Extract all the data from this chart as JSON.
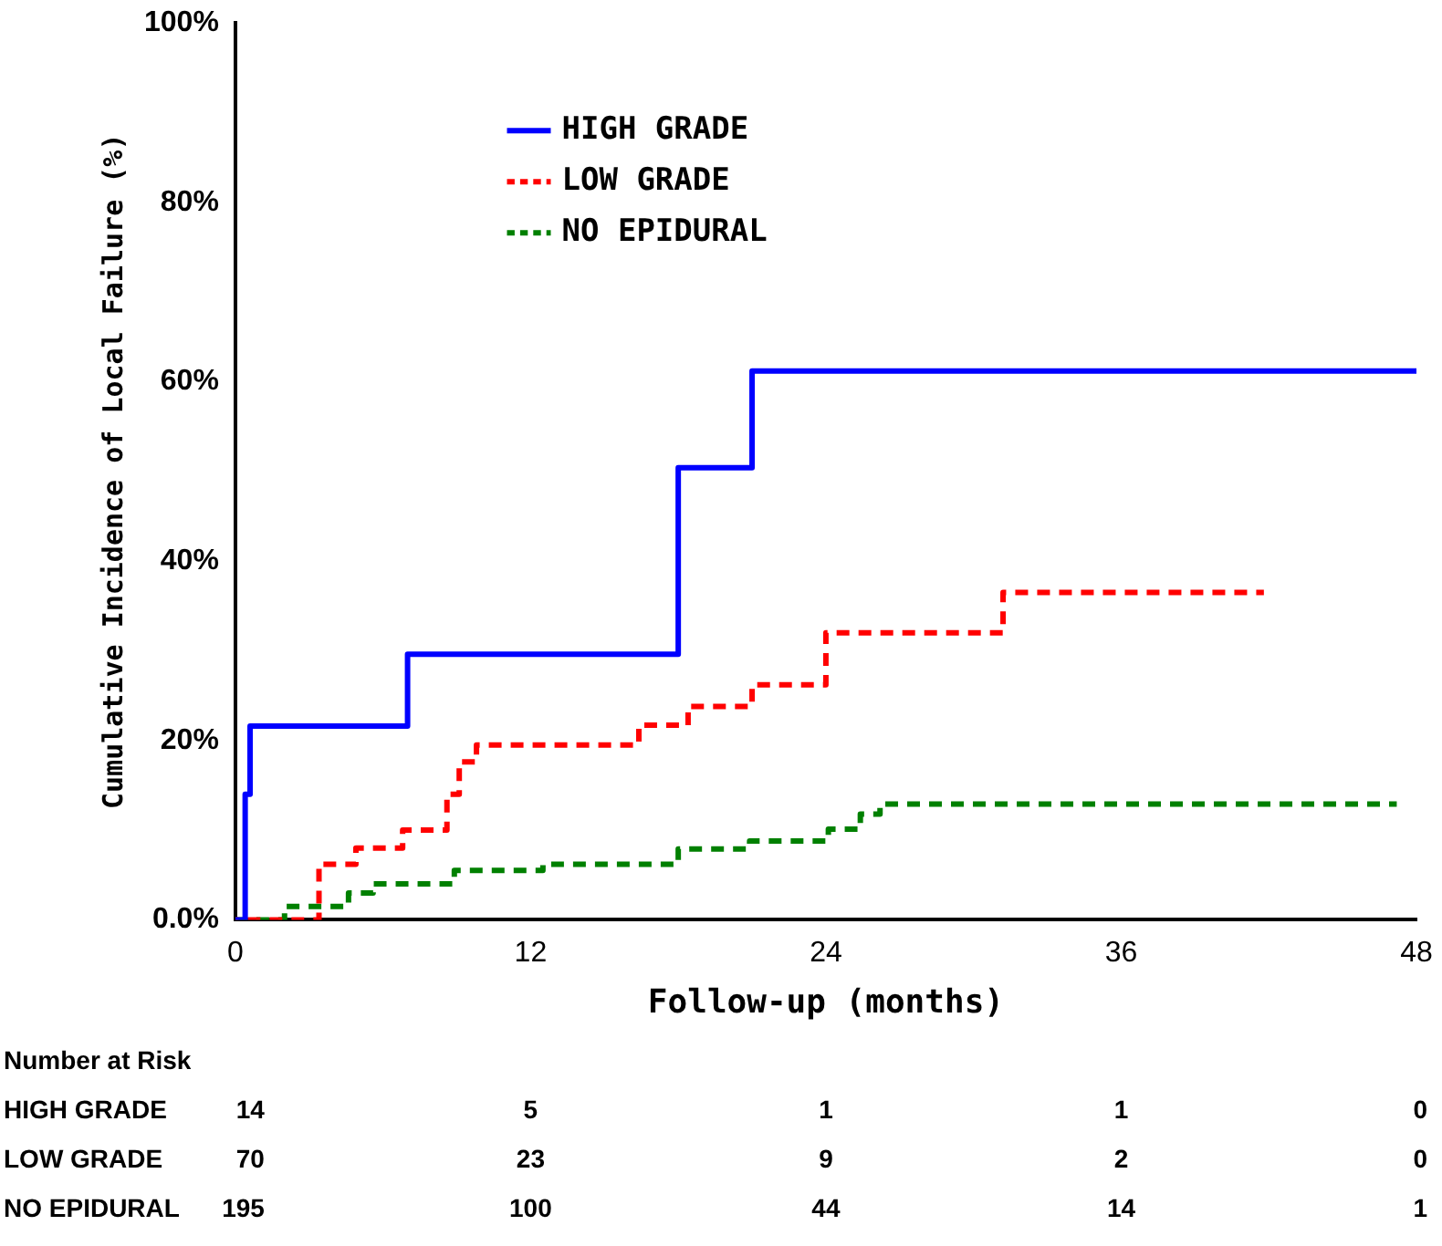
{
  "chart_data": {
    "type": "step",
    "xlabel": "Follow-up (months)",
    "ylabel": "Cumulative Incidence of Local Failure (%)",
    "xlim": [
      0,
      48
    ],
    "xticks": [
      0,
      12,
      24,
      36,
      48
    ],
    "ylim": [
      0,
      100
    ],
    "yticks": [
      {
        "value": 0,
        "label": "0.0%"
      },
      {
        "value": 20,
        "label": "20%"
      },
      {
        "value": 40,
        "label": "40%"
      },
      {
        "value": 60,
        "label": "60%"
      },
      {
        "value": 80,
        "label": "80%"
      },
      {
        "value": 100,
        "label": "100%"
      }
    ],
    "grid": false,
    "legend": "top",
    "marker": "none",
    "series": [
      {
        "name": "HIGH GRADE",
        "color": "#0000ff",
        "line_style": "solid",
        "x": [
          0,
          0.4,
          0.6,
          7,
          18,
          21,
          48
        ],
        "values": [
          0,
          14,
          21.6,
          29.6,
          50.4,
          61.2,
          61.2
        ]
      },
      {
        "name": "LOW GRADE",
        "color": "#ff0000",
        "line_style": "dashed",
        "x": [
          0,
          3.4,
          4.9,
          6.8,
          8.6,
          9.1,
          9.8,
          16.4,
          18.4,
          21,
          24,
          31.2,
          41.8
        ],
        "values": [
          0,
          6.2,
          8,
          10,
          14,
          17.6,
          19.5,
          21.7,
          23.8,
          26.2,
          32,
          36.5,
          36.5
        ]
      },
      {
        "name": "NO EPIDURAL",
        "color": "#008000",
        "line_style": "dashed",
        "x": [
          0,
          2,
          4.6,
          5.6,
          8.9,
          12.5,
          18,
          20.9,
          24.1,
          25.4,
          26.2,
          47.2
        ],
        "values": [
          0,
          1.5,
          3,
          4,
          5.5,
          6.2,
          7.9,
          8.8,
          10.1,
          11.8,
          12.9,
          12.9
        ]
      }
    ],
    "annotations": [
      "Number at Risk",
      "HIGH GRADE",
      "14",
      "5",
      "1",
      "1",
      "0",
      "LOW GRADE",
      "70",
      "23",
      "9",
      "2",
      "0",
      "NO EPIDURAL",
      "195",
      "100",
      "44",
      "14",
      "1"
    ]
  }
}
